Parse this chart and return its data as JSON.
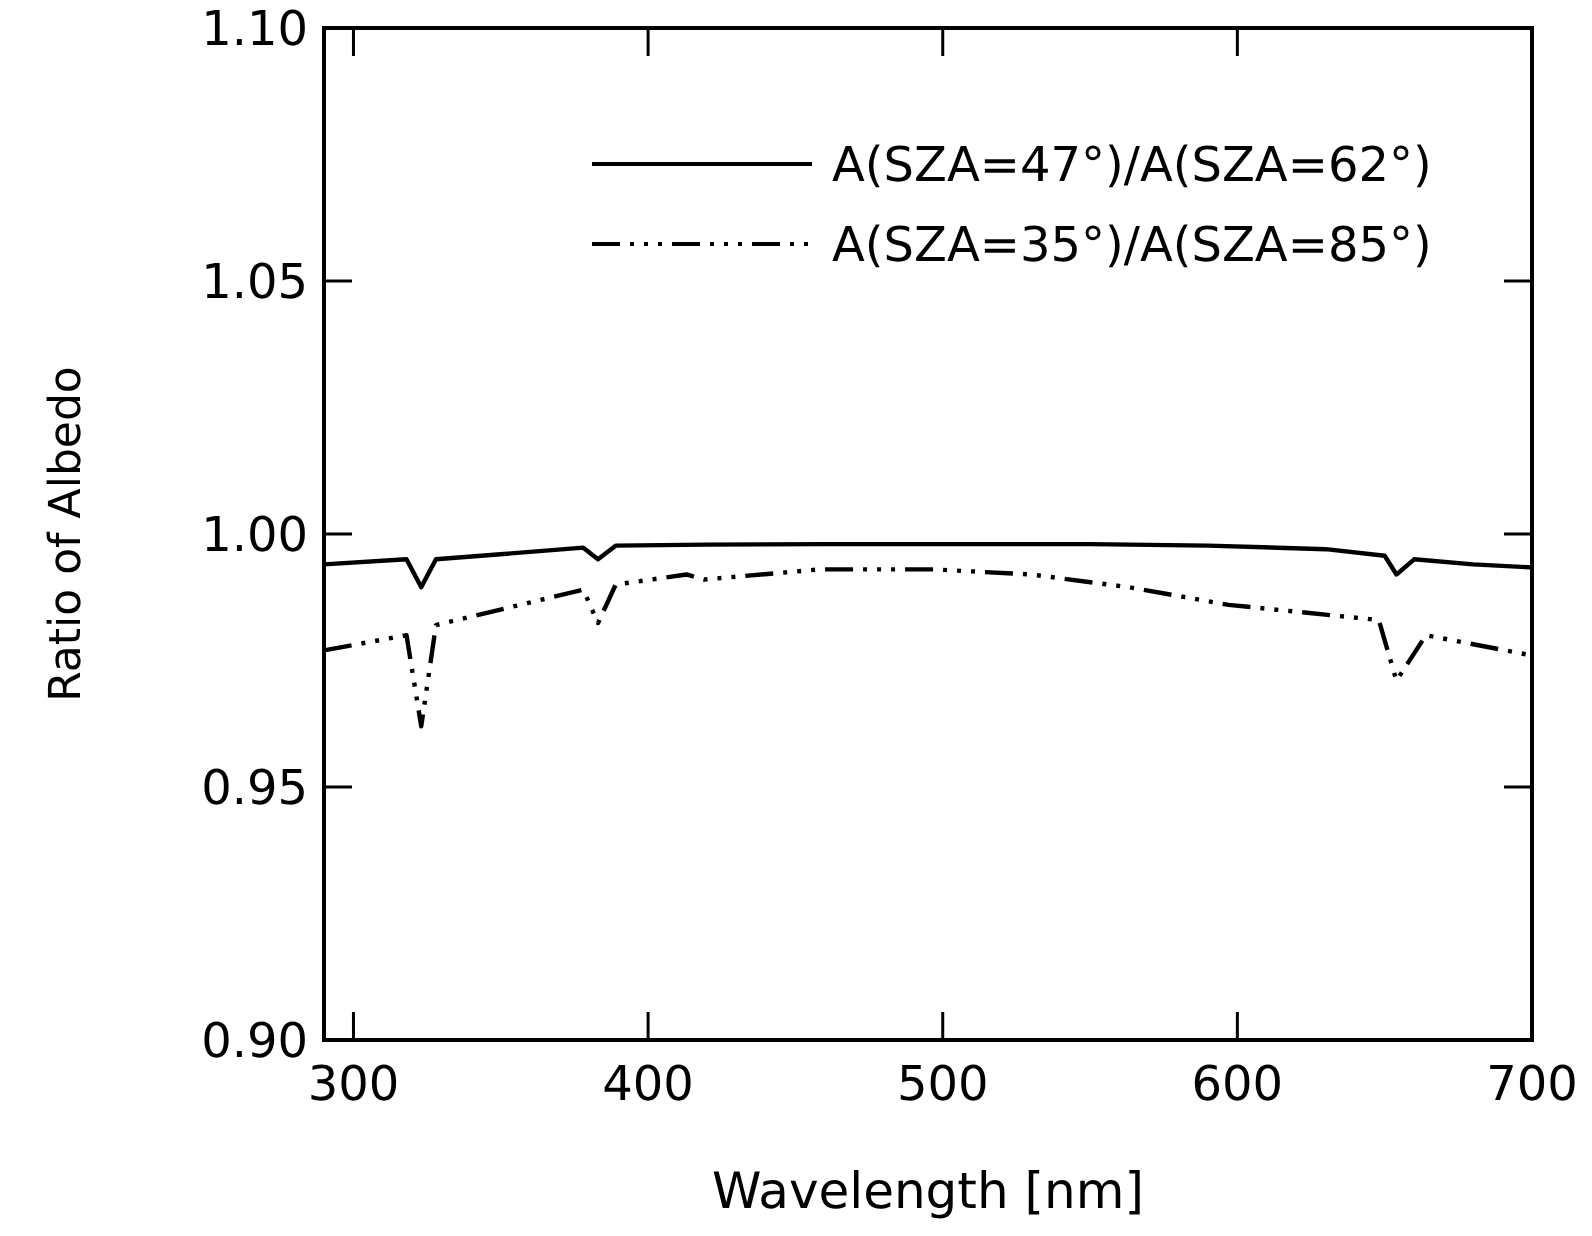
{
  "chart_data": {
    "type": "line",
    "xlabel": "Wavelength [nm]",
    "ylabel": "Ratio of Albedo",
    "xlim": [
      290,
      700
    ],
    "xticks": [
      300,
      400,
      500,
      600,
      700
    ],
    "ylim": [
      0.9,
      1.1
    ],
    "yticks": [
      {
        "value": 0.9,
        "label": "0.90"
      },
      {
        "value": 0.95,
        "label": "0.95"
      },
      {
        "value": 1.0,
        "label": "1.00"
      },
      {
        "value": 1.05,
        "label": "1.05"
      },
      {
        "value": 1.1,
        "label": "1.10"
      }
    ],
    "legend": "top right",
    "grid": false,
    "series": [
      {
        "name": "A(SZA=47°)/A(SZA=62°)",
        "color": "#000000",
        "line_style": "solid",
        "x": [
          290,
          318,
          323,
          328,
          378,
          383,
          389,
          420,
          460,
          497,
          550,
          590,
          630,
          650,
          654,
          660,
          680,
          700
        ],
        "values": [
          0.994,
          0.995,
          0.9895,
          0.995,
          0.9973,
          0.995,
          0.9977,
          0.9979,
          0.998,
          0.998,
          0.998,
          0.9977,
          0.997,
          0.9957,
          0.992,
          0.995,
          0.994,
          0.9934
        ]
      },
      {
        "name": "A(SZA=35°)/A(SZA=85°)",
        "color": "#000000",
        "line_style": "dashed",
        "x": [
          290,
          318,
          323,
          328,
          378,
          383,
          389,
          413,
          419,
          458,
          497,
          530,
          563,
          597,
          648,
          654,
          664,
          700
        ],
        "values": [
          0.977,
          0.98,
          0.962,
          0.982,
          0.989,
          0.9824,
          0.99,
          0.992,
          0.991,
          0.993,
          0.993,
          0.992,
          0.9895,
          0.986,
          0.983,
          0.971,
          0.98,
          0.976
        ]
      }
    ]
  }
}
